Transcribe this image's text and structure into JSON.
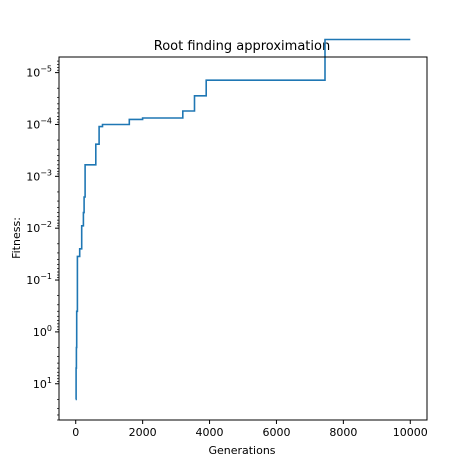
{
  "chart_data": {
    "type": "line",
    "title": "Root finding approximation",
    "xlabel": "Generations",
    "ylabel": "Fitness:",
    "xlim": [
      -500,
      10500
    ],
    "xticks": [
      0,
      2000,
      4000,
      6000,
      8000,
      10000
    ],
    "xtick_labels": [
      "0",
      "2000",
      "4000",
      "6000",
      "8000",
      "10000"
    ],
    "y_scale": "log",
    "y_axis_inverted": true,
    "ylim": [
      50,
      5e-06
    ],
    "yticks": [
      10,
      1,
      0.1,
      0.01,
      0.001,
      0.0001,
      1e-05
    ],
    "ytick_bases": [
      "10",
      "10",
      "10",
      "10",
      "10",
      "10",
      "10"
    ],
    "ytick_exponents": [
      "1",
      "0",
      "−1",
      "−2",
      "−3",
      "−4",
      "−5"
    ],
    "grid": false,
    "series": [
      {
        "color": "#1f77b4",
        "step": "post",
        "x": [
          0,
          10,
          20,
          30,
          50,
          80,
          120,
          150,
          180,
          230,
          250,
          280,
          320,
          600,
          700,
          800,
          1600,
          2000,
          3200,
          3550,
          3900,
          4900,
          7450,
          10000
        ],
        "y": [
          20,
          5,
          2,
          0.4,
          0.035,
          0.035,
          0.025,
          0.025,
          0.009,
          0.005,
          0.0025,
          0.0006,
          0.0006,
          0.00024,
          0.00011,
          0.0001,
          8e-05,
          7.5e-05,
          5.5e-05,
          2.8e-05,
          1.4e-05,
          1.4e-05,
          2.3e-06,
          2.3e-06
        ]
      }
    ]
  }
}
